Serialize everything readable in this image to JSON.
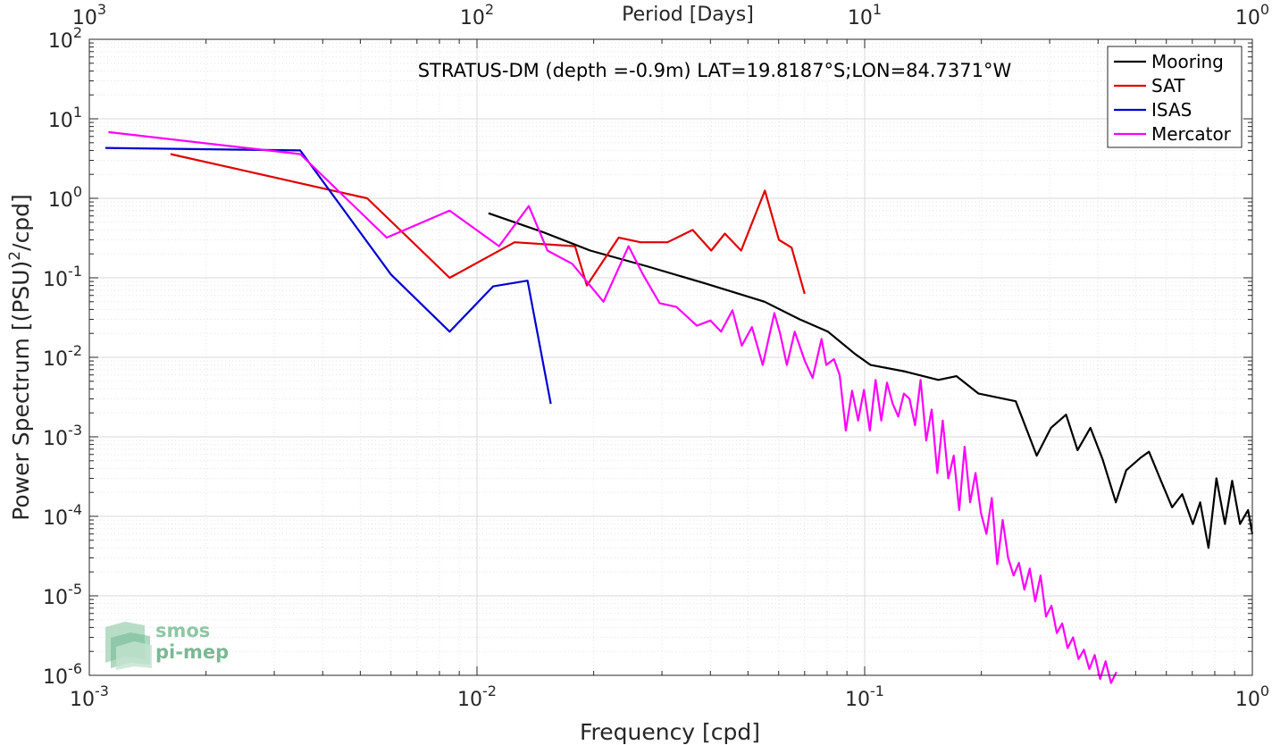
{
  "chart_data": {
    "type": "line",
    "title": "STRATUS-DM (depth =-0.9m) LAT=19.8187°S;LON=84.7371°W",
    "xlabel": "Frequency [cpd]",
    "ylabel_main": "Power Spectrum [(PSU)",
    "ylabel_sup": "2",
    "ylabel_tail": "/cpd]",
    "top_xlabel": "Period [Days]",
    "x_scale": "log",
    "y_scale": "log",
    "xlim": [
      0.001,
      1
    ],
    "ylim": [
      1e-06,
      100
    ],
    "grid": true,
    "legend_position": "top-right",
    "x_ticks": [
      {
        "value": 0.001,
        "base": "10",
        "exp": "-3"
      },
      {
        "value": 0.01,
        "base": "10",
        "exp": "-2"
      },
      {
        "value": 0.1,
        "base": "10",
        "exp": "-1"
      },
      {
        "value": 1,
        "base": "10",
        "exp": "0"
      }
    ],
    "top_ticks": [
      {
        "value": 0.001,
        "base": "10",
        "exp": "3"
      },
      {
        "value": 0.01,
        "base": "10",
        "exp": "2"
      },
      {
        "value": 0.1,
        "base": "10",
        "exp": "1"
      },
      {
        "value": 1,
        "base": "10",
        "exp": "0"
      }
    ],
    "y_ticks": [
      {
        "value": 100,
        "base": "10",
        "exp": "2"
      },
      {
        "value": 10,
        "base": "10",
        "exp": "1"
      },
      {
        "value": 1,
        "base": "10",
        "exp": "0"
      },
      {
        "value": 0.1,
        "base": "10",
        "exp": "-1"
      },
      {
        "value": 0.01,
        "base": "10",
        "exp": "-2"
      },
      {
        "value": 0.001,
        "base": "10",
        "exp": "-3"
      },
      {
        "value": 0.0001,
        "base": "10",
        "exp": "-4"
      },
      {
        "value": 1e-05,
        "base": "10",
        "exp": "-5"
      },
      {
        "value": 1e-06,
        "base": "10",
        "exp": "-6"
      }
    ],
    "series": [
      {
        "name": "Mooring",
        "color": "#000000",
        "x": [
          0.0107,
          0.0147,
          0.0196,
          0.0274,
          0.0388,
          0.0552,
          0.068,
          0.0804,
          0.0945,
          0.1036,
          0.1258,
          0.1549,
          0.1725,
          0.1967,
          0.2453,
          0.2779,
          0.3024,
          0.3309,
          0.354,
          0.3822,
          0.411,
          0.4445,
          0.4728,
          0.516,
          0.5412,
          0.5812,
          0.6211,
          0.6594,
          0.7023,
          0.7337,
          0.7706,
          0.8081,
          0.8497,
          0.887,
          0.9296,
          0.9746,
          1.0
        ],
        "y": [
          0.65,
          0.38,
          0.22,
          0.14,
          0.085,
          0.05,
          0.03,
          0.021,
          0.011,
          0.008,
          0.0067,
          0.0052,
          0.0058,
          0.0035,
          0.0028,
          0.00058,
          0.0013,
          0.0019,
          0.00068,
          0.0013,
          0.00052,
          0.00015,
          0.00038,
          0.00055,
          0.00065,
          0.00028,
          0.00013,
          0.00019,
          8e-05,
          0.00015,
          4e-05,
          0.0003,
          8e-05,
          0.00028,
          8e-05,
          0.00012,
          6e-05
        ]
      },
      {
        "name": "SAT",
        "color": "#e00000",
        "x": [
          0.00162,
          0.00521,
          0.0085,
          0.0125,
          0.0179,
          0.0192,
          0.0232,
          0.0264,
          0.031,
          0.036,
          0.0402,
          0.0436,
          0.048,
          0.0522,
          0.0553,
          0.0601,
          0.0648,
          0.07
        ],
        "y": [
          3.6,
          1.0,
          0.1,
          0.28,
          0.25,
          0.08,
          0.32,
          0.28,
          0.28,
          0.4,
          0.22,
          0.36,
          0.22,
          0.62,
          1.25,
          0.3,
          0.24,
          0.063
        ]
      },
      {
        "name": "ISAS",
        "color": "#0000d0",
        "x": [
          0.0011,
          0.0035,
          0.006,
          0.0085,
          0.011,
          0.0135,
          0.0155
        ],
        "y": [
          4.3,
          4.0,
          0.11,
          0.021,
          0.078,
          0.092,
          0.0026
        ]
      },
      {
        "name": "Mercator",
        "color": "#ff00ff",
        "x": [
          0.00112,
          0.0035,
          0.00585,
          0.0085,
          0.0114,
          0.0136,
          0.0152,
          0.0176,
          0.0212,
          0.0246,
          0.0268,
          0.0296,
          0.0327,
          0.0369,
          0.04,
          0.0426,
          0.0456,
          0.0482,
          0.0512,
          0.0546,
          0.0585,
          0.0605,
          0.063,
          0.066,
          0.0701,
          0.0734,
          0.0774,
          0.0796,
          0.0833,
          0.0862,
          0.0894,
          0.0928,
          0.0962,
          0.0996,
          0.1031,
          0.1067,
          0.1104,
          0.1142,
          0.1181,
          0.1221,
          0.1262,
          0.1305,
          0.1349,
          0.1394,
          0.1441,
          0.1489,
          0.1539,
          0.159,
          0.1643,
          0.1697,
          0.1753,
          0.1811,
          0.1871,
          0.1932,
          0.1995,
          0.2061,
          0.2128,
          0.2198,
          0.227,
          0.2344,
          0.2421,
          0.25,
          0.2582,
          0.2666,
          0.2753,
          0.2843,
          0.2936,
          0.3032,
          0.3131,
          0.3233,
          0.3339,
          0.3448,
          0.3561,
          0.3677,
          0.3797,
          0.3921,
          0.4049,
          0.4182,
          0.4319,
          0.446
        ],
        "y": [
          6.8,
          3.6,
          0.32,
          0.7,
          0.25,
          0.8,
          0.22,
          0.15,
          0.05,
          0.25,
          0.11,
          0.048,
          0.043,
          0.025,
          0.029,
          0.021,
          0.039,
          0.014,
          0.024,
          0.008,
          0.036,
          0.02,
          0.008,
          0.021,
          0.009,
          0.0055,
          0.017,
          0.008,
          0.0095,
          0.006,
          0.0012,
          0.0038,
          0.0016,
          0.0039,
          0.0012,
          0.0052,
          0.0016,
          0.0048,
          0.0026,
          0.0018,
          0.0035,
          0.003,
          0.0014,
          0.0052,
          0.0009,
          0.0022,
          0.00035,
          0.0016,
          0.0003,
          0.00058,
          0.00012,
          0.00075,
          0.00015,
          0.00035,
          0.00011,
          6e-05,
          0.00017,
          2.5e-05,
          9e-05,
          3e-05,
          1.8e-05,
          2.6e-05,
          1.2e-05,
          2.2e-05,
          8.5e-06,
          1.8e-05,
          5.5e-06,
          7.5e-06,
          3.4e-06,
          4.5e-06,
          2.2e-06,
          3e-06,
          1.6e-06,
          2.1e-06,
          1.2e-06,
          1.8e-06,
          9e-07,
          1.5e-06,
          8e-07,
          1.1e-06
        ]
      }
    ]
  },
  "watermark": {
    "line1": "smos",
    "line2": "pi-mep"
  }
}
